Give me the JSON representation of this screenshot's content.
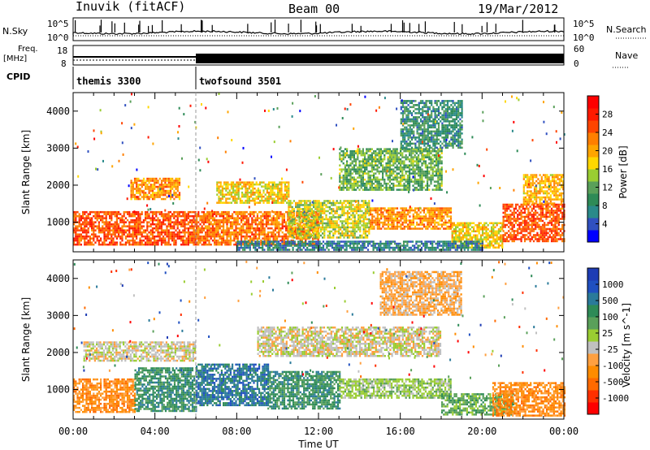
{
  "header": {
    "station": "Inuvik (fitACF)",
    "beam": "Beam 00",
    "date": "19/Mar/2012"
  },
  "top_panels": {
    "nsky_label": "N.Sky",
    "nsearch_label": "N.Search",
    "nsky_ticks": [
      "10^5",
      "10^0"
    ],
    "nsearch_ticks": [
      "10^5",
      "10^0"
    ],
    "freq_label": "Freq.",
    "freq_unit": "[MHz]",
    "freq_ticks": [
      "18",
      "8"
    ],
    "nave_label": "Nave",
    "nave_ticks": [
      "60",
      "0"
    ],
    "cpid_label": "CPID",
    "cpid_segments": [
      {
        "name": "themis 3300",
        "start_hour": 0,
        "end_hour": 6
      },
      {
        "name": "twofsound 3501",
        "start_hour": 6,
        "end_hour": 24
      }
    ]
  },
  "chart_data": [
    {
      "type": "heatmap",
      "title": "",
      "quantity": "Power",
      "ylabel": "Slant Range [km]",
      "xlabel": "",
      "x_range_hours": [
        0,
        24
      ],
      "ylim": [
        200,
        4500
      ],
      "y_ticks": [
        "1000",
        "2000",
        "3000",
        "4000"
      ],
      "colorbar_label": "Power [dB]",
      "colorbar_ticks": [
        "28",
        "24",
        "20",
        "16",
        "12",
        "8",
        "4"
      ],
      "colorbar_range": [
        0,
        32
      ],
      "colors": [
        "#0000ff",
        "#3050c0",
        "#2a8a8a",
        "#2e8b57",
        "#5aa05a",
        "#9acd32",
        "#ffd700",
        "#ffa500",
        "#ff7f00",
        "#ff4500",
        "#ff1a00",
        "#ff0000"
      ],
      "echo_regions": [
        {
          "x": [
            0.0,
            6.0
          ],
          "y": [
            400,
            1300
          ],
          "level": 26
        },
        {
          "x": [
            6.0,
            12.0
          ],
          "y": [
            400,
            1300
          ],
          "level": 24
        },
        {
          "x": [
            2.8,
            5.2
          ],
          "y": [
            1600,
            2200
          ],
          "level": 22
        },
        {
          "x": [
            7.0,
            10.5
          ],
          "y": [
            1500,
            2100
          ],
          "level": 18
        },
        {
          "x": [
            10.5,
            14.5
          ],
          "y": [
            600,
            1600
          ],
          "level": 16
        },
        {
          "x": [
            14.5,
            18.5
          ],
          "y": [
            800,
            1400
          ],
          "level": 22
        },
        {
          "x": [
            13.0,
            18.0
          ],
          "y": [
            1900,
            3000
          ],
          "level": 12
        },
        {
          "x": [
            18.5,
            21.0
          ],
          "y": [
            300,
            1000
          ],
          "level": 18
        },
        {
          "x": [
            21.0,
            24.0
          ],
          "y": [
            500,
            1500
          ],
          "level": 26
        },
        {
          "x": [
            8.0,
            20.0
          ],
          "y": [
            250,
            500
          ],
          "level": 6
        },
        {
          "x": [
            16.0,
            19.0
          ],
          "y": [
            3000,
            4300
          ],
          "level": 8
        },
        {
          "x": [
            22.0,
            24.0
          ],
          "y": [
            1500,
            2300
          ],
          "level": 20
        }
      ]
    },
    {
      "type": "heatmap",
      "title": "",
      "quantity": "Velocity",
      "ylabel": "Slant Range [km]",
      "xlabel": "Time UT",
      "x_ticks": [
        "00:00",
        "04:00",
        "08:00",
        "12:00",
        "16:00",
        "20:00",
        "00:00"
      ],
      "x_range_hours": [
        0,
        24
      ],
      "ylim": [
        200,
        4500
      ],
      "y_ticks": [
        "1000",
        "2000",
        "3000",
        "4000"
      ],
      "colorbar_label": "Velocity [m s^-1]",
      "colorbar_ticks": [
        "1000",
        "500",
        "100",
        "25",
        "-25",
        "-100",
        "-500",
        "-1000"
      ],
      "colors": [
        "#ff0000",
        "#ff3000",
        "#ff6a00",
        "#ff8c00",
        "#ffa040",
        "#c0c0c0",
        "#9acd32",
        "#5aa05a",
        "#2e8b57",
        "#2a7a9a",
        "#2050c0",
        "#1e3cb4"
      ],
      "echo_regions": [
        {
          "x": [
            0.0,
            3.0
          ],
          "y": [
            400,
            1300
          ],
          "level": 3
        },
        {
          "x": [
            3.0,
            6.0
          ],
          "y": [
            400,
            1600
          ],
          "level": 8
        },
        {
          "x": [
            6.0,
            9.5
          ],
          "y": [
            600,
            1700
          ],
          "level": 9
        },
        {
          "x": [
            9.5,
            13.0
          ],
          "y": [
            500,
            1500
          ],
          "level": 8
        },
        {
          "x": [
            0.5,
            6.0
          ],
          "y": [
            1800,
            2300
          ],
          "level": 5
        },
        {
          "x": [
            9.0,
            18.0
          ],
          "y": [
            1900,
            2700
          ],
          "level": 5
        },
        {
          "x": [
            13.0,
            18.5
          ],
          "y": [
            800,
            1300
          ],
          "level": 6
        },
        {
          "x": [
            18.0,
            21.5
          ],
          "y": [
            300,
            900
          ],
          "level": 7
        },
        {
          "x": [
            20.5,
            24.0
          ],
          "y": [
            300,
            1200
          ],
          "level": 3
        },
        {
          "x": [
            15.0,
            19.0
          ],
          "y": [
            3000,
            4200
          ],
          "level": 4
        }
      ]
    }
  ]
}
